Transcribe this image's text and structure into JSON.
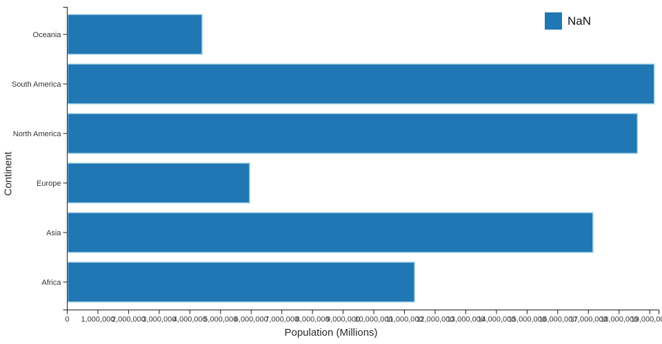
{
  "chart_data": {
    "type": "bar",
    "orientation": "horizontal",
    "xlabel": "Population (Millions)",
    "ylabel": "Continent",
    "legend": [
      "NaN"
    ],
    "legend_position": "top-right",
    "categories_top_to_bottom": [
      "Oceania",
      "South America",
      "North America",
      "Europe",
      "Asia",
      "Africa"
    ],
    "values": [
      4400000,
      19150000,
      18600000,
      5950000,
      17150000,
      11330000
    ],
    "xlim": [
      0,
      19300000
    ],
    "x_tick_step": 1000000,
    "x_tick_max": 19000000,
    "x_tick_format": "comma",
    "grid": false,
    "colors": {
      "bar_fill": "#2077b4",
      "bar_stroke": "#add8e6",
      "axis": "#1a1a1a",
      "text": "#333333"
    }
  }
}
